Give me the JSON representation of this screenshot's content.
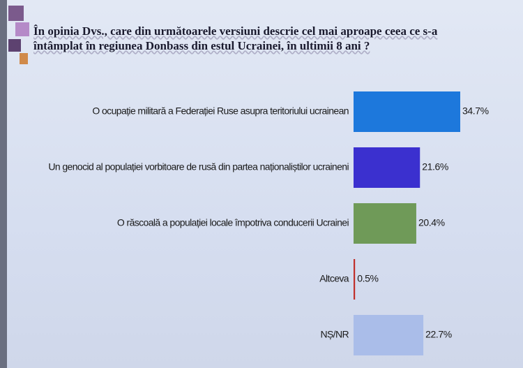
{
  "chart_data": {
    "type": "bar",
    "orientation": "horizontal",
    "title": "În opinia Dvs., care din următoarele versiuni descrie cel mai aproape ceea ce s-a întâmplat în regiunea Donbass din estul Ucrainei, în ultimii 8 ani ?",
    "categories": [
      "O ocupație militară a Federației Ruse asupra teritoriului ucrainean",
      "Un genocid al populației vorbitoare de rusă din partea naționaliștilor ucraineni",
      "O răscoală a populației locale împotriva conducerii Ucrainei",
      "Altceva",
      "NȘ/NR"
    ],
    "values": [
      34.7,
      21.6,
      20.4,
      0.5,
      22.7
    ],
    "value_labels": [
      "34.7%",
      "21.6%",
      "20.4%",
      "0.5%",
      "22.7%"
    ],
    "colors": [
      "#1d78dc",
      "#3b30cf",
      "#6f9a58",
      "#c0302b",
      "#aabde9"
    ]
  }
}
